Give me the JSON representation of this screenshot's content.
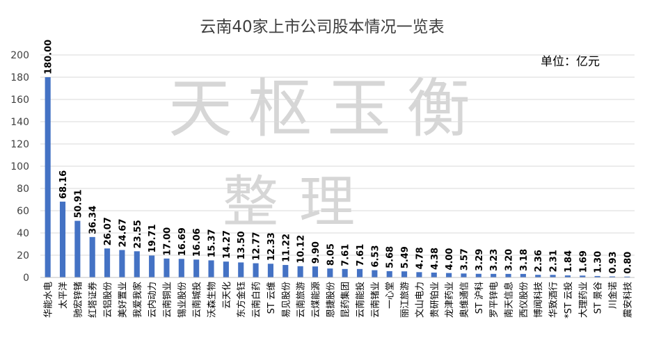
{
  "chart_data": {
    "type": "bar",
    "title": "云南40家上市公司股本情况一览表",
    "unit_label": "单位：亿元",
    "watermark": [
      "天枢玉衡",
      "整理"
    ],
    "ylim": [
      0,
      200
    ],
    "yticks": [
      0,
      20,
      40,
      60,
      80,
      100,
      120,
      140,
      160,
      180,
      200
    ],
    "grid": true,
    "legend": "none",
    "colors": {
      "bar": "#4472c4",
      "grid": "#d9d9d9",
      "watermark": "#d6d6d6"
    },
    "categories": [
      "华能水电",
      "太平洋",
      "驰宏锌锗",
      "红塔证券",
      "云铝股份",
      "美好置业",
      "我爱我家",
      "云内动力",
      "云南铜业",
      "锡业股份",
      "云南城投",
      "沃森生物",
      "云天化",
      "东方金钰",
      "云南白药",
      "ST 云维",
      "易见股份",
      "云南旅游",
      "云煤能源",
      "恩捷股份",
      "昆药集团",
      "云南能投",
      "云南锗业",
      "一心堂",
      "丽江旅游",
      "文山电力",
      "贵研铂业",
      "龙津药业",
      "奥维通信",
      "ST 沪科",
      "罗平锌电",
      "南天信息",
      "西仪股份",
      "博闻科技",
      "华致酒行",
      "*ST 云投",
      "大理药业",
      "ST 景谷",
      "川金诺",
      "震安科技"
    ],
    "values": [
      180.0,
      68.16,
      50.91,
      36.34,
      26.07,
      24.67,
      23.55,
      19.71,
      17.0,
      16.69,
      16.06,
      15.37,
      14.27,
      13.5,
      12.77,
      12.33,
      11.22,
      10.12,
      9.9,
      8.05,
      7.61,
      7.61,
      6.53,
      5.68,
      5.49,
      4.78,
      4.38,
      4.0,
      3.57,
      3.29,
      3.23,
      3.2,
      3.18,
      2.36,
      2.31,
      1.84,
      1.69,
      1.3,
      0.93,
      0.8
    ],
    "value_labels": [
      "180.00",
      "68.16",
      "50.91",
      "36.34",
      "26.07",
      "24.67",
      "23.55",
      "19.71",
      "17.00",
      "16.69",
      "16.06",
      "15.37",
      "14.27",
      "13.50",
      "12.77",
      "12.33",
      "11.22",
      "10.12",
      "9.90",
      "8.05",
      "7.61",
      "7.61",
      "6.53",
      "5.68",
      "5.49",
      "4.78",
      "4.38",
      "4.00",
      "3.57",
      "3.29",
      "3.23",
      "3.20",
      "3.18",
      "2.36",
      "2.31",
      "1.84",
      "1.69",
      "1.30",
      "0.93",
      "0.80"
    ]
  }
}
